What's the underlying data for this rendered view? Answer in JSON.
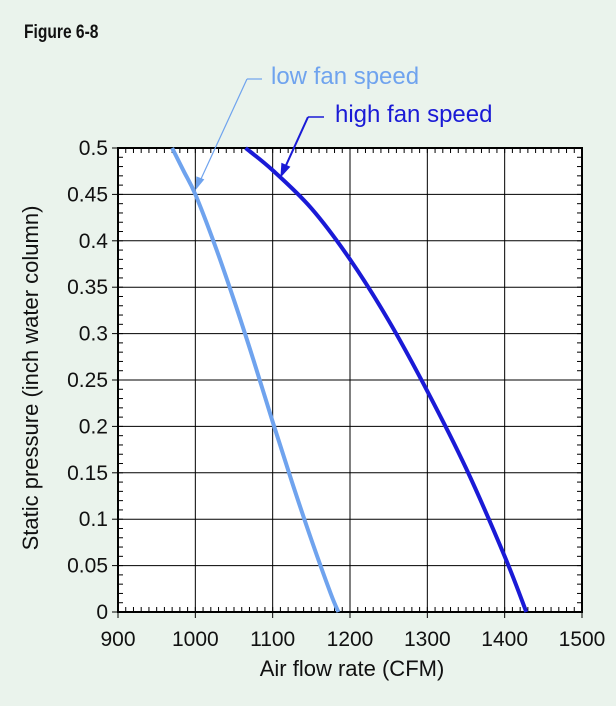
{
  "figure_label": "Figure 6-8",
  "colors": {
    "background": "#eaf3ec",
    "plot_background": "#ffffff",
    "grid": "#000000",
    "low_fan": "#6fa3ee",
    "high_fan": "#1a1ad6"
  },
  "chart_data": {
    "type": "line",
    "title": "",
    "xlabel": "Air flow rate (CFM)",
    "ylabel": "Static pressure (inch water column)",
    "xlim": [
      900,
      1500
    ],
    "ylim": [
      0,
      0.5
    ],
    "grid": true,
    "x_ticks": [
      "900",
      "1000",
      "1100",
      "1200",
      "1300",
      "1400",
      "1500"
    ],
    "y_ticks": [
      "0",
      "0.05",
      "0.1",
      "0.15",
      "0.2",
      "0.25",
      "0.3",
      "0.35",
      "0.4",
      "0.45",
      "0.5"
    ],
    "series": [
      {
        "name": "low fan speed",
        "color": "#6fa3ee",
        "x": [
          970,
          985,
          1000,
          1025,
          1050,
          1075,
          1100,
          1125,
          1150,
          1175,
          1185
        ],
        "y": [
          0.5,
          0.475,
          0.45,
          0.396,
          0.336,
          0.272,
          0.205,
          0.14,
          0.078,
          0.02,
          0.0
        ]
      },
      {
        "name": "high fan speed",
        "color": "#1a1ad6",
        "x": [
          1065,
          1100,
          1150,
          1200,
          1250,
          1300,
          1350,
          1400,
          1428
        ],
        "y": [
          0.5,
          0.476,
          0.435,
          0.38,
          0.314,
          0.238,
          0.155,
          0.06,
          0.0
        ]
      }
    ]
  }
}
